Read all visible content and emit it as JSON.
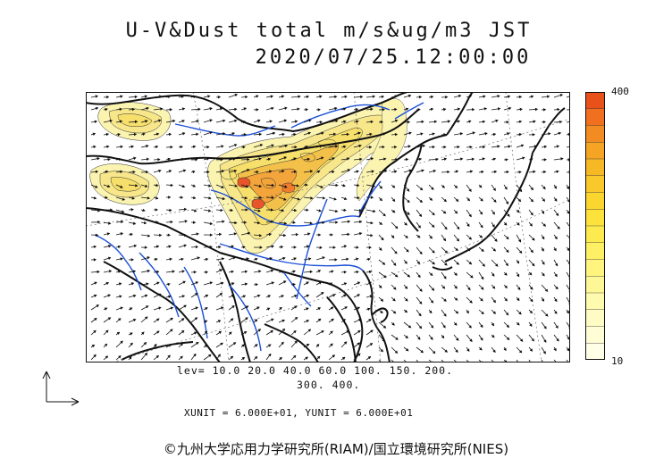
{
  "header": {
    "title_line1": "U-V&Dust total m/s&ug/m3 JST",
    "title_line2": "2020/07/25.12:00:00"
  },
  "colorbar": {
    "top_label": "400",
    "bottom_label": "10",
    "colors": [
      "#e8521a",
      "#f07020",
      "#f28c22",
      "#f5a424",
      "#f7b826",
      "#f9c82a",
      "#fbd62e",
      "#fce23a",
      "#fdea4e",
      "#fdf064",
      "#fef47e",
      "#fef796",
      "#fefaae",
      "#fefcc4",
      "#fffdd6",
      "#fffee6"
    ]
  },
  "legend": {
    "levels_line1": "lev= 10.0 20.0 40.0 60.0 100. 150. 200.",
    "levels_line2": "300. 400.",
    "unit_line": "XUNIT = 6.000E+01, YUNIT = 6.000E+01"
  },
  "credit": "©九州大学応用力学研究所(RIAM)/国立環境研究所(NIES)",
  "map_colors": {
    "coast": "#111111",
    "rivers": "#1a4fd8",
    "dust_light": "#fbf3b0",
    "dust_mid": "#f6df6a",
    "dust_high": "#f3a43a",
    "dust_peak": "#e8552a"
  }
}
